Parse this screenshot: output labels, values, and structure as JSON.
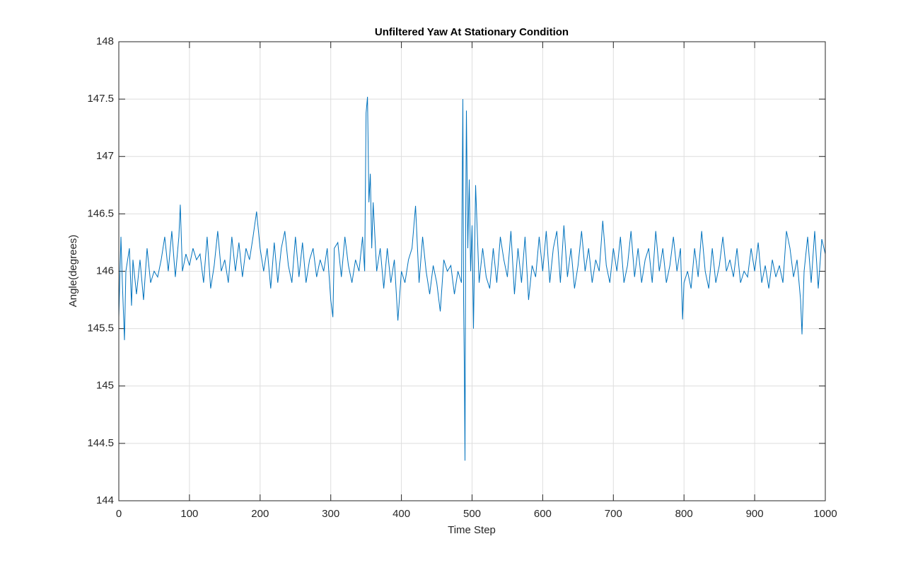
{
  "chart_data": {
    "type": "line",
    "title": "Unfiltered Yaw At Stationary Condition",
    "xlabel": "Time Step",
    "ylabel": "Angle(degrees)",
    "x": [
      0,
      3,
      5,
      8,
      10,
      15,
      18,
      20,
      25,
      30,
      35,
      40,
      45,
      50,
      55,
      60,
      65,
      70,
      75,
      80,
      85,
      87,
      90,
      95,
      100,
      105,
      110,
      115,
      120,
      125,
      130,
      135,
      140,
      145,
      150,
      155,
      160,
      165,
      170,
      175,
      180,
      185,
      190,
      195,
      200,
      205,
      210,
      215,
      220,
      225,
      230,
      235,
      240,
      245,
      250,
      255,
      260,
      265,
      270,
      275,
      280,
      285,
      290,
      295,
      300,
      303,
      305,
      310,
      315,
      320,
      325,
      330,
      335,
      340,
      345,
      348,
      350,
      352,
      354,
      356,
      358,
      360,
      365,
      370,
      375,
      380,
      385,
      390,
      395,
      400,
      405,
      410,
      415,
      420,
      425,
      430,
      435,
      440,
      445,
      450,
      455,
      460,
      465,
      470,
      475,
      480,
      485,
      487,
      488,
      489,
      490,
      491,
      492,
      494,
      496,
      498,
      500,
      502,
      505,
      510,
      515,
      520,
      525,
      530,
      535,
      540,
      545,
      550,
      555,
      560,
      565,
      570,
      575,
      580,
      585,
      590,
      595,
      600,
      605,
      610,
      615,
      620,
      625,
      630,
      635,
      640,
      645,
      650,
      655,
      660,
      665,
      670,
      675,
      680,
      685,
      690,
      695,
      700,
      705,
      710,
      715,
      720,
      725,
      730,
      735,
      740,
      745,
      750,
      755,
      760,
      765,
      770,
      775,
      780,
      785,
      790,
      795,
      798,
      800,
      805,
      810,
      815,
      820,
      825,
      830,
      835,
      840,
      845,
      850,
      855,
      860,
      865,
      870,
      875,
      880,
      885,
      890,
      895,
      900,
      905,
      910,
      915,
      920,
      925,
      930,
      935,
      940,
      945,
      950,
      955,
      960,
      965,
      967,
      970,
      975,
      980,
      985,
      990,
      995,
      1000
    ],
    "values": [
      145.6,
      146.3,
      145.9,
      145.4,
      146.0,
      146.2,
      145.7,
      146.1,
      145.8,
      146.1,
      145.75,
      146.2,
      145.9,
      146.0,
      145.95,
      146.1,
      146.3,
      146.0,
      146.35,
      145.95,
      146.3,
      146.58,
      146.0,
      146.15,
      146.05,
      146.2,
      146.1,
      146.15,
      145.9,
      146.3,
      145.85,
      146.05,
      146.35,
      146.0,
      146.1,
      145.9,
      146.3,
      146.0,
      146.25,
      145.95,
      146.2,
      146.1,
      146.3,
      146.52,
      146.2,
      146.0,
      146.2,
      145.85,
      146.25,
      145.9,
      146.2,
      146.35,
      146.05,
      145.9,
      146.3,
      145.95,
      146.25,
      145.9,
      146.1,
      146.2,
      145.95,
      146.1,
      146.0,
      146.2,
      145.75,
      145.6,
      146.2,
      146.25,
      145.95,
      146.3,
      146.05,
      145.9,
      146.1,
      146.0,
      146.3,
      146.0,
      147.38,
      147.52,
      146.6,
      146.85,
      146.2,
      146.6,
      146.0,
      146.2,
      145.85,
      146.2,
      145.9,
      146.1,
      145.57,
      146.0,
      145.9,
      146.1,
      146.2,
      146.57,
      145.9,
      146.3,
      146.0,
      145.8,
      146.05,
      145.9,
      145.65,
      146.1,
      146.0,
      146.05,
      145.8,
      146.0,
      145.9,
      147.5,
      145.75,
      145.2,
      144.35,
      146.5,
      147.4,
      146.2,
      146.8,
      146.0,
      146.4,
      145.5,
      146.75,
      145.9,
      146.2,
      145.95,
      145.85,
      146.2,
      145.9,
      146.3,
      146.1,
      145.95,
      146.35,
      145.8,
      146.2,
      145.9,
      146.3,
      145.75,
      146.05,
      145.95,
      146.3,
      146.0,
      146.35,
      145.9,
      146.2,
      146.35,
      145.9,
      146.4,
      145.95,
      146.2,
      145.85,
      146.05,
      146.35,
      146.0,
      146.2,
      145.9,
      146.1,
      146.0,
      146.44,
      146.05,
      145.9,
      146.2,
      146.0,
      146.3,
      145.9,
      146.05,
      146.35,
      145.95,
      146.2,
      145.9,
      146.1,
      146.2,
      145.9,
      146.35,
      146.0,
      146.2,
      145.9,
      146.05,
      146.3,
      146.0,
      146.2,
      145.58,
      145.9,
      146.0,
      145.85,
      146.2,
      145.95,
      146.35,
      146.0,
      145.85,
      146.2,
      145.9,
      146.05,
      146.3,
      146.0,
      146.1,
      145.95,
      146.2,
      145.9,
      146.0,
      145.95,
      146.2,
      146.0,
      146.25,
      145.9,
      146.05,
      145.85,
      146.1,
      145.95,
      146.05,
      145.9,
      146.35,
      146.2,
      145.95,
      146.1,
      145.75,
      145.45,
      146.0,
      146.3,
      145.9,
      146.35,
      145.85,
      146.28,
      146.15
    ],
    "color": "#0072bd",
    "xlim": [
      0,
      1000
    ],
    "ylim": [
      144,
      148
    ],
    "xticks": [
      0,
      100,
      200,
      300,
      400,
      500,
      600,
      700,
      800,
      900,
      1000
    ],
    "yticks": [
      144,
      144.5,
      145,
      145.5,
      146,
      146.5,
      147,
      147.5,
      148
    ],
    "grid": true
  }
}
